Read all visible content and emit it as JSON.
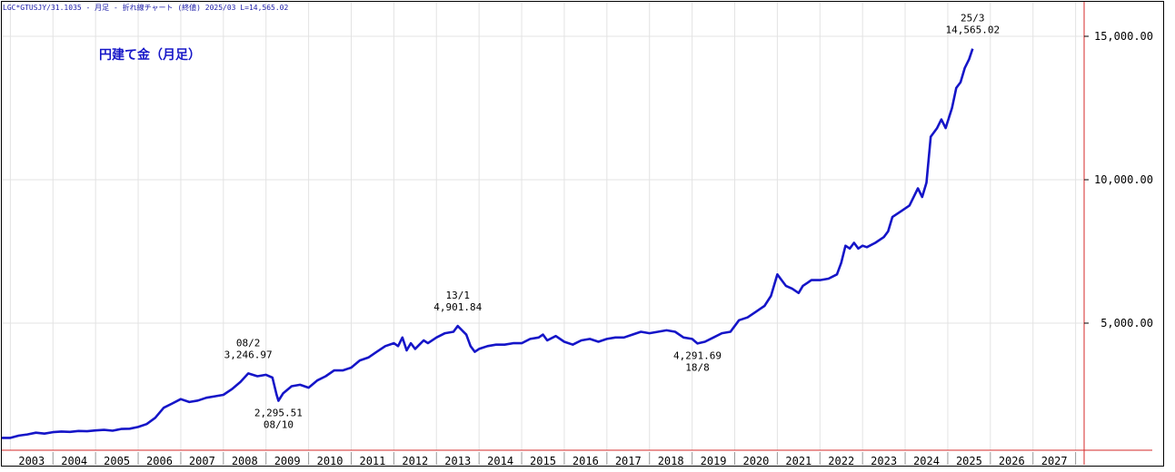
{
  "header": "LGC*GTUSJY/31.1035 - 月足 - 折れ線チャート (終値) 2025/03 L=14,565.02",
  "chart_data": {
    "type": "line",
    "title": "円建て金（月足）",
    "xlabel": "",
    "ylabel": "",
    "ylim": [
      200,
      16000
    ],
    "xlim": [
      2002.3,
      2027.7
    ],
    "x_ticks": [
      "2003",
      "2004",
      "2005",
      "2006",
      "2007",
      "2008",
      "2009",
      "2010",
      "2011",
      "2012",
      "2013",
      "2014",
      "2015",
      "2016",
      "2017",
      "2018",
      "2019",
      "2020",
      "2021",
      "2022",
      "2023",
      "2024",
      "2025",
      "2026",
      "2027"
    ],
    "y_ticks": [
      {
        "value": 5000,
        "label": "5,000.00"
      },
      {
        "value": 10000,
        "label": "10,000.00"
      },
      {
        "value": 15000,
        "label": "15,000.00"
      }
    ],
    "grid": true,
    "line_color": "#1515c8",
    "series": [
      {
        "x": [
          2002.3,
          2002.5,
          2002.7,
          2002.9,
          2003.1,
          2003.3,
          2003.5,
          2003.7,
          2003.9,
          2004.1,
          2004.3,
          2004.5,
          2004.7,
          2004.9,
          2005.1,
          2005.3,
          2005.5,
          2005.7,
          2005.9,
          2006.1,
          2006.3,
          2006.5,
          2006.7,
          2006.9,
          2007.1,
          2007.3,
          2007.5,
          2007.7,
          2007.9,
          2008.083,
          2008.3,
          2008.5,
          2008.65,
          2008.75,
          2008.792,
          2008.9,
          2009.1,
          2009.3,
          2009.5,
          2009.7,
          2009.9,
          2010.1,
          2010.3,
          2010.5,
          2010.7,
          2010.9,
          2011.1,
          2011.3,
          2011.5,
          2011.6,
          2011.7,
          2011.8,
          2011.9,
          2012.0,
          2012.1,
          2012.2,
          2012.3,
          2012.5,
          2012.7,
          2012.9,
          2013.0,
          2013.1,
          2013.2,
          2013.3,
          2013.4,
          2013.5,
          2013.7,
          2013.9,
          2014.1,
          2014.3,
          2014.5,
          2014.7,
          2014.9,
          2015.0,
          2015.1,
          2015.3,
          2015.5,
          2015.7,
          2015.9,
          2016.1,
          2016.3,
          2016.5,
          2016.7,
          2016.9,
          2017.1,
          2017.3,
          2017.5,
          2017.7,
          2017.9,
          2018.1,
          2018.3,
          2018.5,
          2018.625,
          2018.8,
          2019.0,
          2019.2,
          2019.4,
          2019.5,
          2019.6,
          2019.8,
          2020.0,
          2020.1,
          2020.2,
          2020.35,
          2020.5,
          2020.6,
          2020.7,
          2020.85,
          2021.0,
          2021.1,
          2021.2,
          2021.3,
          2021.5,
          2021.7,
          2021.9,
          2022.0,
          2022.1,
          2022.2,
          2022.3,
          2022.4,
          2022.5,
          2022.6,
          2022.8,
          2023.0,
          2023.1,
          2023.2,
          2023.4,
          2023.6,
          2023.8,
          2023.9,
          2024.0,
          2024.1,
          2024.25,
          2024.35,
          2024.45,
          2024.6,
          2024.7,
          2024.8,
          2024.9,
          2025.0,
          2025.083
        ],
        "y": [
          1000,
          1000,
          1080,
          1120,
          1180,
          1150,
          1200,
          1220,
          1210,
          1240,
          1230,
          1260,
          1280,
          1250,
          1310,
          1320,
          1380,
          1480,
          1700,
          2050,
          2200,
          2350,
          2250,
          2300,
          2400,
          2450,
          2500,
          2700,
          2950,
          3246.97,
          3150,
          3200,
          3100,
          2500,
          2295.51,
          2550,
          2800,
          2850,
          2750,
          3000,
          3150,
          3350,
          3350,
          3450,
          3700,
          3800,
          4000,
          4200,
          4300,
          4200,
          4500,
          4050,
          4300,
          4100,
          4250,
          4400,
          4300,
          4500,
          4650,
          4700,
          4901.84,
          4750,
          4600,
          4200,
          4000,
          4100,
          4200,
          4250,
          4250,
          4300,
          4300,
          4450,
          4500,
          4600,
          4400,
          4550,
          4350,
          4250,
          4400,
          4450,
          4350,
          4450,
          4500,
          4500,
          4600,
          4700,
          4650,
          4700,
          4750,
          4700,
          4500,
          4450,
          4291.69,
          4350,
          4500,
          4650,
          4700,
          4900,
          5100,
          5200,
          5400,
          5500,
          5600,
          5950,
          6700,
          6500,
          6300,
          6200,
          6050,
          6300,
          6400,
          6500,
          6500,
          6550,
          6700,
          7100,
          7700,
          7600,
          7800,
          7600,
          7700,
          7650,
          7800,
          8000,
          8200,
          8700,
          8900,
          9100,
          9700,
          9400,
          9900,
          11500,
          11800,
          12100,
          11800,
          12500,
          13200,
          13400,
          13900,
          14200,
          14565.02
        ]
      }
    ],
    "annotations": [
      {
        "x": 2008.083,
        "y": 3246.97,
        "date": "08/2",
        "value": "3,246.97",
        "pos": "above"
      },
      {
        "x": 2008.792,
        "y": 2295.51,
        "date": "08/10",
        "value": "2,295.51",
        "pos": "below"
      },
      {
        "x": 2013.0,
        "y": 4901.84,
        "date": "13/1",
        "value": "4,901.84",
        "pos": "above"
      },
      {
        "x": 2018.625,
        "y": 4291.69,
        "date": "18/8",
        "value": "4,291.69",
        "pos": "below"
      },
      {
        "x": 2025.083,
        "y": 14565.02,
        "date": "25/3",
        "value": "14,565.02",
        "pos": "above"
      }
    ]
  }
}
